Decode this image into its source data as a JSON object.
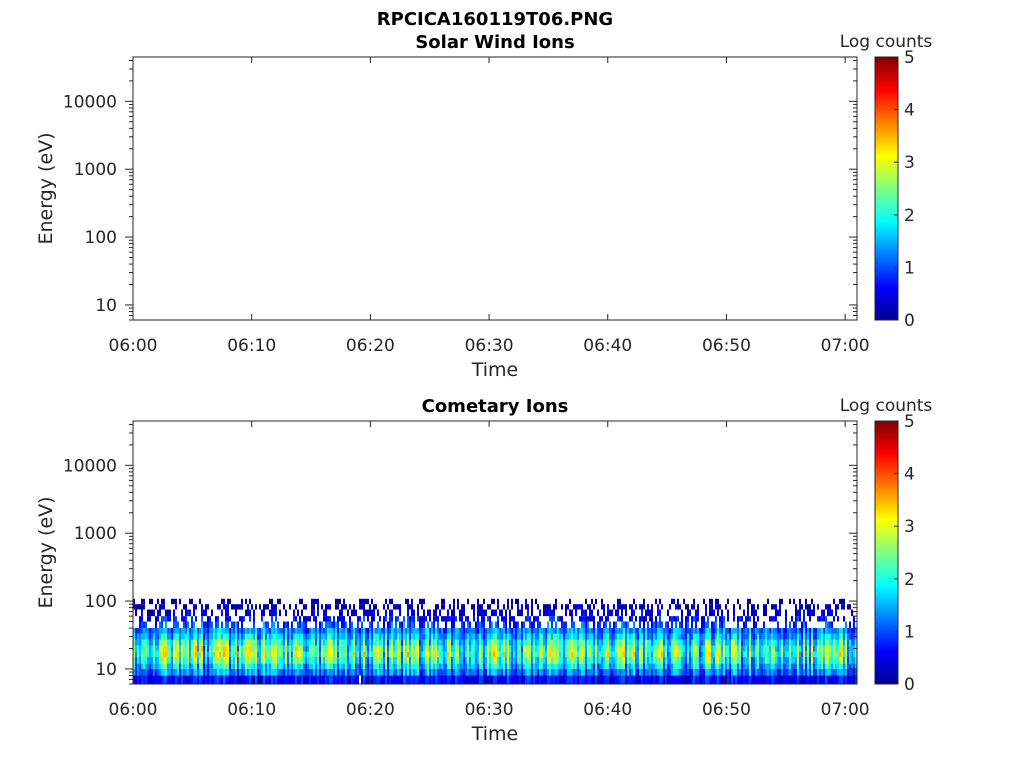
{
  "figure_title": "RPCICA160119T06.PNG",
  "chart_data": [
    {
      "type": "heatmap",
      "title": "Solar Wind Ions",
      "xlabel": "Time",
      "ylabel": "Energy (eV)",
      "x_ticks": [
        "06:00",
        "06:10",
        "06:20",
        "06:30",
        "06:40",
        "06:50",
        "07:00"
      ],
      "xlim": [
        "06:00",
        "07:01"
      ],
      "y_scale": "log",
      "y_ticks": [
        10,
        100,
        1000,
        10000
      ],
      "ylim": [
        6,
        45000
      ],
      "colorbar": {
        "label": "Log counts",
        "ticks": [
          0,
          1,
          2,
          3,
          4,
          5
        ],
        "range": [
          0,
          5
        ],
        "colormap": "jet"
      },
      "data_summary": "no counts recorded"
    },
    {
      "type": "heatmap",
      "title": "Cometary Ions",
      "xlabel": "Time",
      "ylabel": "Energy (eV)",
      "x_ticks": [
        "06:00",
        "06:10",
        "06:20",
        "06:30",
        "06:40",
        "06:50",
        "07:00"
      ],
      "xlim": [
        "06:00",
        "07:01"
      ],
      "y_scale": "log",
      "y_ticks": [
        10,
        100,
        1000,
        10000
      ],
      "ylim": [
        6,
        45000
      ],
      "colorbar": {
        "label": "Log counts",
        "ticks": [
          0,
          1,
          2,
          3,
          4,
          5
        ],
        "range": [
          0,
          5
        ],
        "colormap": "jet"
      },
      "profile": {
        "energy_eV": [
          6,
          8,
          10,
          12,
          15,
          18,
          22,
          27,
          33,
          40,
          50,
          60,
          75,
          90
        ],
        "typical_log_counts": [
          0.6,
          1.2,
          1.6,
          2.0,
          2.3,
          2.2,
          1.9,
          1.5,
          1.2,
          0.9,
          0.6,
          0.4,
          0.25,
          0.1
        ]
      },
      "data_summary": "dense low-energy population (~6–90 eV), peak ~2–3 log counts near 10–20 eV throughout 06:00–07:01"
    }
  ]
}
